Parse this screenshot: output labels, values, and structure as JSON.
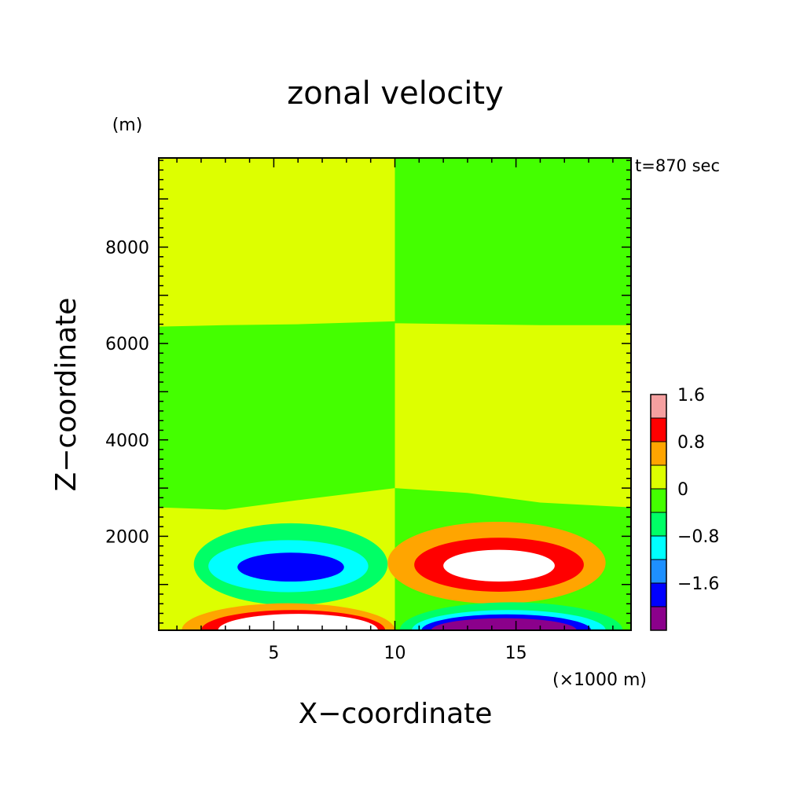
{
  "chart_data": {
    "type": "heatmap",
    "title": "zonal velocity",
    "xlabel": "X−coordinate",
    "ylabel": "Z−coordinate",
    "x_unit": "(×1000 m)",
    "y_unit": "(m)",
    "time_label": "t=870 sec",
    "xlim": [
      0.25,
      19.75
    ],
    "ylim": [
      50,
      9850
    ],
    "x_ticks": [
      5,
      10,
      15
    ],
    "x_tick_labels": [
      "5",
      "10",
      "15"
    ],
    "y_ticks": [
      2000,
      4000,
      6000,
      8000
    ],
    "y_tick_labels": [
      "2000",
      "4000",
      "6000",
      "8000"
    ],
    "colorbar": {
      "levels": [
        -2.4,
        -2.0,
        -1.6,
        -1.2,
        -0.8,
        -0.4,
        0,
        0.4,
        0.8,
        1.2,
        1.6,
        2.0,
        2.4
      ],
      "colors": [
        "#8b008b",
        "#0000ff",
        "#1e90ff",
        "#00ffff",
        "#00ff66",
        "#44ff00",
        "#ddff00",
        "#ffa500",
        "#ff0000",
        "#f5a0a0"
      ],
      "tick_values": [
        -1.6,
        -0.8,
        0,
        0.8,
        1.6
      ],
      "tick_labels": [
        "−1.6",
        "−0.8",
        "0",
        "0.8",
        "1.6"
      ]
    },
    "regions": [
      {
        "type": "rect",
        "x": [
          0.25,
          10
        ],
        "z": [
          50,
          9850
        ],
        "level": 0.2
      },
      {
        "type": "rect",
        "x": [
          10,
          19.75
        ],
        "z": [
          50,
          9850
        ],
        "level": -0.2
      },
      {
        "type": "poly",
        "level": 0.2,
        "pts": [
          [
            10,
            6420
          ],
          [
            13,
            6400
          ],
          [
            16,
            6380
          ],
          [
            19.75,
            6380
          ],
          [
            19.75,
            2600
          ],
          [
            16,
            2700
          ],
          [
            13,
            2900
          ],
          [
            10,
            3000
          ]
        ]
      },
      {
        "type": "poly",
        "level": -0.2,
        "pts": [
          [
            0.25,
            6350
          ],
          [
            3,
            6380
          ],
          [
            6,
            6400
          ],
          [
            10,
            6460
          ],
          [
            10,
            3000
          ],
          [
            6,
            2750
          ],
          [
            3,
            2550
          ],
          [
            0.25,
            2600
          ]
        ]
      },
      {
        "type": "rect",
        "x": [
          0.25,
          10
        ],
        "z": [
          50,
          520
        ],
        "level": 0.2
      },
      {
        "type": "rect",
        "x": [
          10,
          19.75
        ],
        "z": [
          50,
          660
        ],
        "level": -0.2
      },
      {
        "type": "ellipse",
        "level": -0.6,
        "cx": 5.7,
        "cz": 1420,
        "rx": 4.0,
        "rz": 850
      },
      {
        "type": "ellipse",
        "level": -1.0,
        "cx": 5.6,
        "cz": 1380,
        "rx": 3.3,
        "rz": 540
      },
      {
        "type": "ellipse",
        "level": -1.8,
        "cx": 5.7,
        "cz": 1360,
        "rx": 2.2,
        "rz": 300
      },
      {
        "type": "ellipse",
        "level": 0.6,
        "cx": 14.2,
        "cz": 1450,
        "rx": 4.5,
        "rz": 850
      },
      {
        "type": "ellipse",
        "level": 1.0,
        "cx": 14.3,
        "cz": 1410,
        "rx": 3.5,
        "rz": 560
      },
      {
        "type": "ellipse",
        "level": 1.8,
        "cx": 14.3,
        "cz": 1390,
        "rx": 2.3,
        "rz": 330
      },
      {
        "type": "ellipse",
        "level": 0.6,
        "cx": 5.6,
        "cz": 50,
        "rx": 4.4,
        "rz": 560
      },
      {
        "type": "ellipse",
        "level": 1.0,
        "cx": 5.8,
        "cz": 50,
        "rx": 3.8,
        "rz": 420
      },
      {
        "type": "ellipse",
        "level": 1.8,
        "cx": 6.0,
        "cz": 50,
        "rx": 3.3,
        "rz": 340
      },
      {
        "type": "ellipse",
        "level": 2.2,
        "cx": 6.1,
        "cz": 50,
        "rx": 2.9,
        "rz": 270
      },
      {
        "type": "ellipse",
        "level": 2.6,
        "cx": 6.2,
        "cz": 50,
        "rx": 2.4,
        "rz": 170
      },
      {
        "type": "ellipse",
        "level": -0.6,
        "cx": 14.8,
        "cz": 50,
        "rx": 4.6,
        "rz": 580
      },
      {
        "type": "ellipse",
        "level": -1.0,
        "cx": 14.7,
        "cz": 50,
        "rx": 4.0,
        "rz": 420
      },
      {
        "type": "ellipse",
        "level": -1.8,
        "cx": 14.6,
        "cz": 50,
        "rx": 3.5,
        "rz": 330
      },
      {
        "type": "ellipse",
        "level": -2.2,
        "cx": 14.5,
        "cz": 50,
        "rx": 3.0,
        "rz": 250
      },
      {
        "type": "ellipse",
        "level": -2.6,
        "cx": 14.4,
        "cz": 50,
        "rx": 2.5,
        "rz": 140
      }
    ]
  }
}
